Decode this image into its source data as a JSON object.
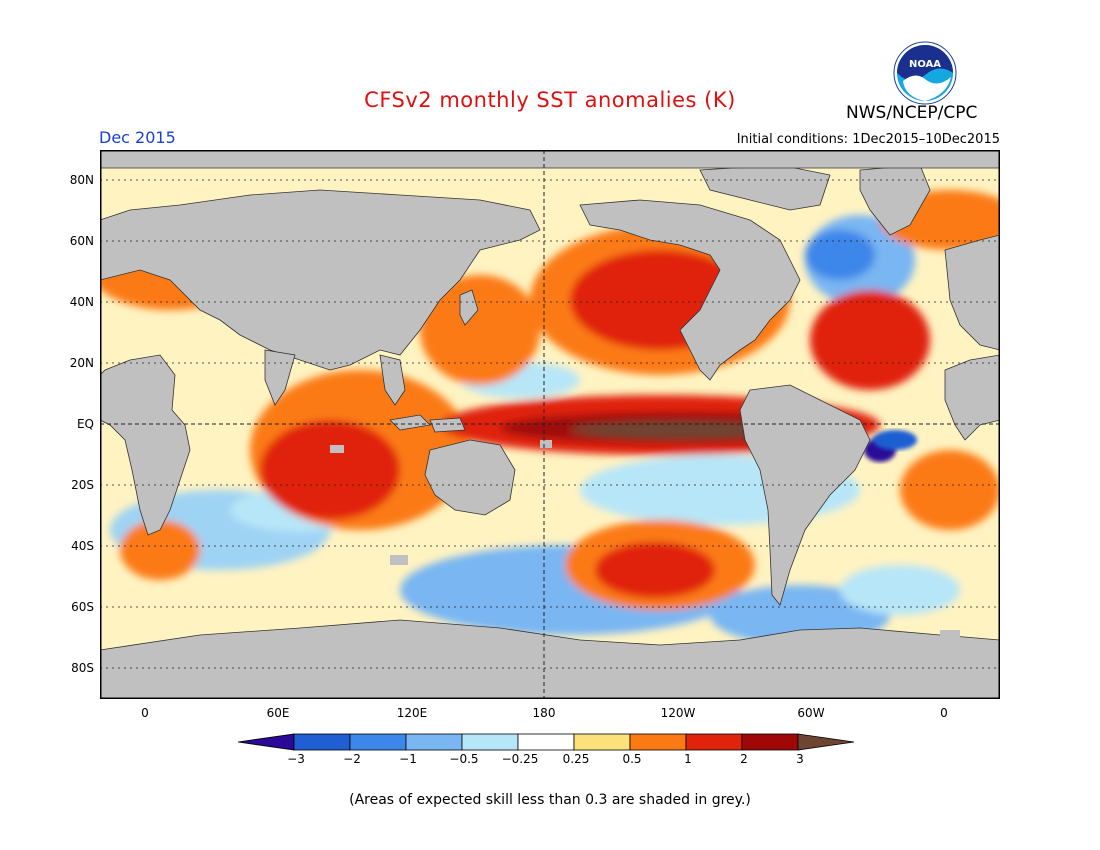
{
  "header": {
    "title": "CFSv2 monthly SST anomalies (K)",
    "agency": "NWS/NCEP/CPC",
    "logo_text": "NOAA",
    "month": "Dec 2015",
    "initial_conditions": "Initial conditions: 1Dec2015–10Dec2015"
  },
  "map": {
    "lat_labels": [
      "80N",
      "60N",
      "40N",
      "20N",
      "EQ",
      "20S",
      "40S",
      "60S",
      "80S"
    ],
    "lon_labels": [
      "0",
      "60E",
      "120E",
      "180",
      "120W",
      "60W",
      "0"
    ],
    "land_color": "#c0c0c0",
    "unit": "K"
  },
  "colorbar": {
    "tick_labels": [
      "−3",
      "−2",
      "−1",
      "−0.5",
      "−0.25",
      "0.25",
      "0.5",
      "1",
      "2",
      "3"
    ],
    "colors": [
      "#2a0a96",
      "#1f5fd1",
      "#3d86ea",
      "#79b6f2",
      "#b7e6f8",
      "#ffffff",
      "#fbe07c",
      "#fb7a14",
      "#e0240c",
      "#a00808",
      "#6e4433"
    ]
  },
  "footnote": "(Areas of expected skill less than 0.3 are shaded in grey.)"
}
